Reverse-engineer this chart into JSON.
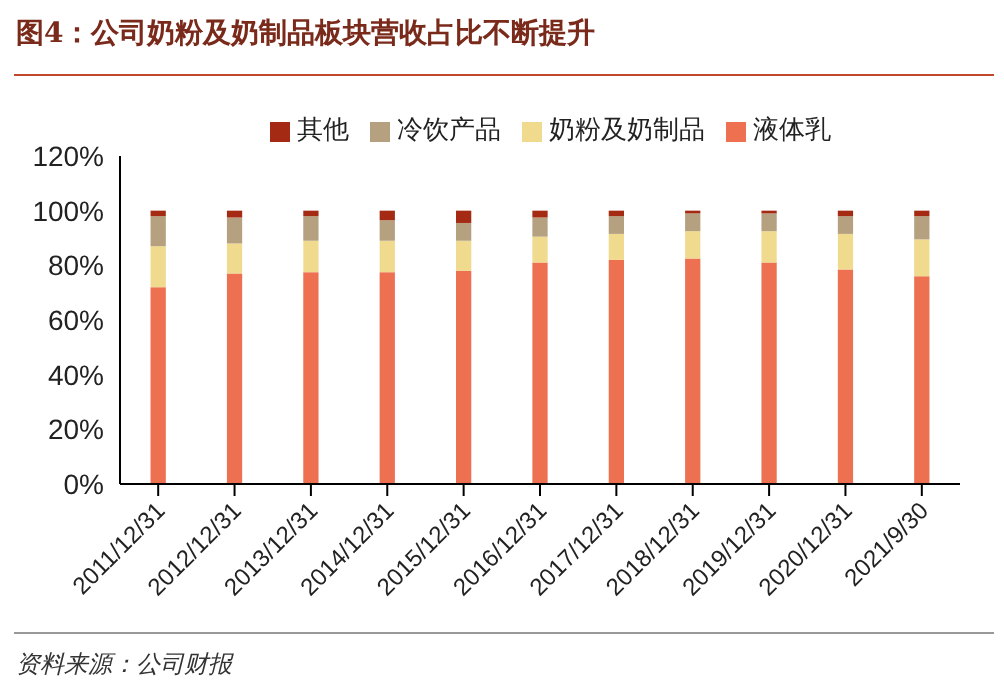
{
  "chart_data": {
    "type": "bar",
    "title": "图4：公司奶粉及奶制品板块营收占比不断提升",
    "annotations": [
      "资料来源：公司财报"
    ],
    "categories": [
      "2011/12/31",
      "2012/12/31",
      "2013/12/31",
      "2014/12/31",
      "2015/12/31",
      "2016/12/31",
      "2017/12/31",
      "2018/12/31",
      "2019/12/31",
      "2020/12/31",
      "2021/9/30"
    ],
    "stacked": true,
    "ylim": [
      0,
      120
    ],
    "yticks": [
      {
        "value": 0,
        "label": "0%"
      },
      {
        "value": 20,
        "label": "20%"
      },
      {
        "value": 40,
        "label": "40%"
      },
      {
        "value": 60,
        "label": "60%"
      },
      {
        "value": 80,
        "label": "80%"
      },
      {
        "value": 100,
        "label": "100%"
      },
      {
        "value": 120,
        "label": "120%"
      }
    ],
    "grid": false,
    "legend": "top",
    "series": [
      {
        "name": "液体乳",
        "color": "#ed7150",
        "values": [
          72,
          77,
          77.5,
          77.5,
          78,
          81,
          82,
          82.5,
          81,
          78.5,
          76
        ]
      },
      {
        "name": "奶粉及奶制品",
        "color": "#f0da8e",
        "values": [
          15,
          11,
          11.5,
          11.5,
          11,
          9.5,
          9.5,
          10,
          11.5,
          13,
          13.5
        ]
      },
      {
        "name": "冷饮产品",
        "color": "#b5a080",
        "values": [
          11,
          9.5,
          9,
          7.5,
          6.5,
          7,
          6.5,
          6.5,
          6.5,
          6.5,
          8.5
        ]
      },
      {
        "name": "其他",
        "color": "#a52a14",
        "values": [
          2,
          2.5,
          2,
          3.5,
          4.5,
          2.5,
          2,
          1,
          1,
          2,
          2
        ]
      }
    ]
  }
}
